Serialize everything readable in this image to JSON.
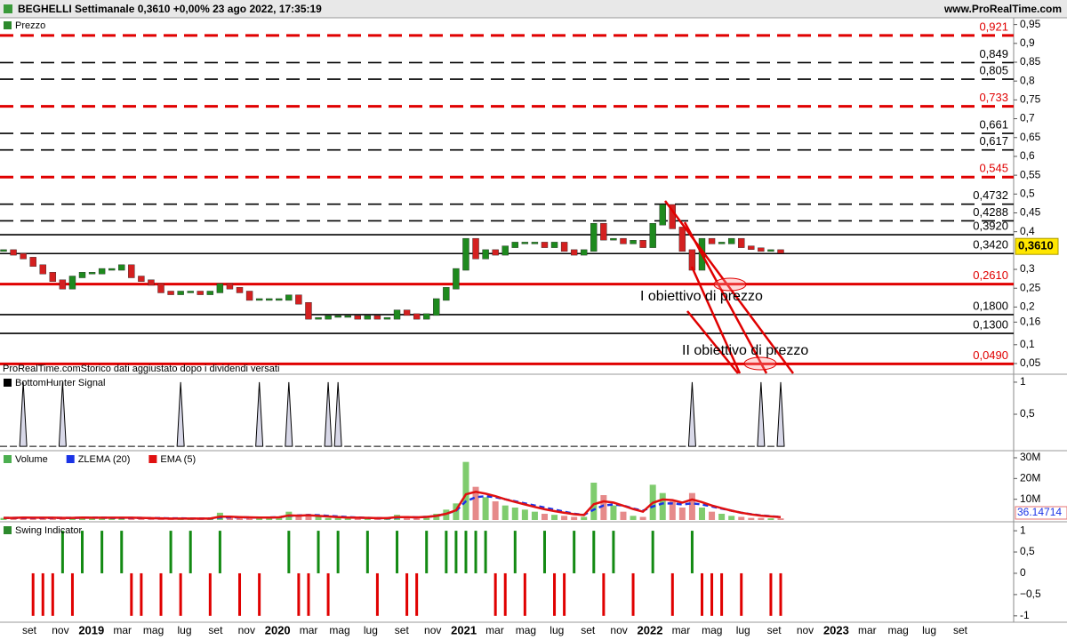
{
  "header": {
    "title": "BEGHELLI Settimanale 0,3610 +0,00% 23 ago 2022, 17:35:19",
    "site": "www.ProRealTime.com"
  },
  "time_axis": {
    "labels": [
      "set",
      "nov",
      "2019",
      "mar",
      "mag",
      "lug",
      "set",
      "nov",
      "2020",
      "mar",
      "mag",
      "lug",
      "set",
      "nov",
      "2021",
      "mar",
      "mag",
      "lug",
      "set",
      "nov",
      "2022",
      "mar",
      "mag",
      "lug",
      "set",
      "nov",
      "2023",
      "mar",
      "mag",
      "lug",
      "set"
    ]
  },
  "chart_data": [
    {
      "type": "candlestick",
      "title": "Prezzo",
      "up_color": "#1e8a1e",
      "down_color": "#d42020",
      "values": [
        0.35,
        0.34,
        0.33,
        0.31,
        0.29,
        0.27,
        0.25,
        0.28,
        0.29,
        0.29,
        0.3,
        0.3,
        0.31,
        0.28,
        0.27,
        0.26,
        0.24,
        0.235,
        0.24,
        0.24,
        0.235,
        0.24,
        0.26,
        0.25,
        0.24,
        0.22,
        0.22,
        0.22,
        0.22,
        0.23,
        0.21,
        0.17,
        0.17,
        0.175,
        0.175,
        0.175,
        0.17,
        0.175,
        0.17,
        0.17,
        0.19,
        0.18,
        0.17,
        0.18,
        0.22,
        0.25,
        0.3,
        0.38,
        0.33,
        0.35,
        0.34,
        0.36,
        0.37,
        0.37,
        0.37,
        0.36,
        0.37,
        0.35,
        0.34,
        0.35,
        0.42,
        0.38,
        0.38,
        0.37,
        0.375,
        0.36,
        0.42,
        0.47,
        0.41,
        0.35,
        0.3,
        0.38,
        0.37,
        0.37,
        0.38,
        0.36,
        0.355,
        0.35,
        0.35,
        0.345
      ],
      "ylim": [
        0.024,
        0.968
      ],
      "yticks": [
        {
          "value": 0.95,
          "label": "0,95"
        },
        {
          "value": 0.9,
          "label": "0,9"
        },
        {
          "value": 0.85,
          "label": "0,85"
        },
        {
          "value": 0.8,
          "label": "0,8"
        },
        {
          "value": 0.75,
          "label": "0,75"
        },
        {
          "value": 0.7,
          "label": "0,7"
        },
        {
          "value": 0.65,
          "label": "0,65"
        },
        {
          "value": 0.6,
          "label": "0,6"
        },
        {
          "value": 0.55,
          "label": "0,55"
        },
        {
          "value": 0.5,
          "label": "0,5"
        },
        {
          "value": 0.45,
          "label": "0,45"
        },
        {
          "value": 0.4,
          "label": "0,4"
        },
        {
          "value": 0.3,
          "label": "0,3"
        },
        {
          "value": 0.25,
          "label": "0,25"
        },
        {
          "value": 0.2,
          "label": "0,2"
        },
        {
          "value": 0.16,
          "label": "0,16"
        },
        {
          "value": 0.1,
          "label": "0,1"
        },
        {
          "value": 0.05,
          "label": "0,05"
        }
      ],
      "levels": [
        {
          "value": 0.921,
          "label": "0,921",
          "color": "#e00000",
          "style": "dashed"
        },
        {
          "value": 0.849,
          "label": "0,849",
          "color": "#000000",
          "style": "dashed"
        },
        {
          "value": 0.805,
          "label": "0,805",
          "color": "#000000",
          "style": "dashed"
        },
        {
          "value": 0.733,
          "label": "0,733",
          "color": "#e00000",
          "style": "dashed"
        },
        {
          "value": 0.661,
          "label": "0,661",
          "color": "#000000",
          "style": "dashed"
        },
        {
          "value": 0.617,
          "label": "0,617",
          "color": "#000000",
          "style": "dashed"
        },
        {
          "value": 0.545,
          "label": "0,545",
          "color": "#e00000",
          "style": "dashed"
        },
        {
          "value": 0.4732,
          "label": "0,4732",
          "color": "#000000",
          "style": "dashed"
        },
        {
          "value": 0.4288,
          "label": "0,4288",
          "color": "#000000",
          "style": "dashed"
        },
        {
          "value": 0.392,
          "label": "0,3920",
          "color": "#000000",
          "style": "solid"
        },
        {
          "value": 0.342,
          "label": "0,3420",
          "color": "#000000",
          "style": "solid"
        },
        {
          "value": 0.261,
          "label": "0,2610",
          "color": "#e00000",
          "style": "solid"
        },
        {
          "value": 0.18,
          "label": "0,1800",
          "color": "#000000",
          "style": "solid"
        },
        {
          "value": 0.13,
          "label": "0,1300",
          "color": "#000000",
          "style": "solid"
        },
        {
          "value": 0.049,
          "label": "0,0490",
          "color": "#e00000",
          "style": "solid"
        }
      ],
      "last": {
        "value": 0.361,
        "label": "0,3610"
      },
      "annotations": [
        "I obiettivo di prezzo",
        "II obiettivo di prezzo"
      ],
      "note": "ProRealTime.comStorico dati aggiustato dopo i dividendi versati"
    },
    {
      "type": "spike",
      "title": "BottomHunter Signal",
      "color": "#000000",
      "values": [
        0,
        0,
        1,
        0,
        0,
        0,
        1,
        0,
        0,
        0,
        0,
        0,
        0,
        0,
        0,
        0,
        0,
        0,
        1,
        0,
        0,
        0,
        0,
        0,
        0,
        0,
        1,
        0,
        0,
        1,
        0,
        0,
        0,
        1,
        1,
        0,
        0,
        0,
        0,
        0,
        0,
        0,
        0,
        0,
        0,
        0,
        0,
        0,
        0,
        0,
        0,
        0,
        0,
        0,
        0,
        0,
        0,
        0,
        0,
        0,
        0,
        0,
        0,
        0,
        0,
        0,
        0,
        0,
        0,
        0,
        1,
        0,
        0,
        0,
        0,
        0,
        0,
        1,
        0,
        1
      ],
      "ylim": [
        -0.04,
        1.11
      ],
      "yticks": [
        1,
        {
          "value": 0.5,
          "label": "0,5"
        }
      ]
    },
    {
      "type": "volume",
      "up_color": "#7fcc6e",
      "down_color": "#e68a8a",
      "series": [
        {
          "name": "Volume",
          "color": "#4caf50",
          "values": [
            1000000,
            1000000,
            1500000,
            1000000,
            1200000,
            1000000,
            800000,
            1000000,
            1500000,
            1000000,
            1000000,
            1000000,
            1200000,
            1000000,
            800000,
            800000,
            600000,
            600000,
            800000,
            600000,
            600000,
            800000,
            3500000,
            1500000,
            1000000,
            1000000,
            1200000,
            1000000,
            1500000,
            4000000,
            2000000,
            2500000,
            1500000,
            1000000,
            1000000,
            800000,
            800000,
            800000,
            800000,
            800000,
            2500000,
            1500000,
            1000000,
            2000000,
            3000000,
            5000000,
            8000000,
            28000000,
            16000000,
            11000000,
            9000000,
            7000000,
            6000000,
            5000000,
            4000000,
            3000000,
            2500000,
            2000000,
            1500000,
            1500000,
            18000000,
            12000000,
            7000000,
            4000000,
            2000000,
            1500000,
            17000000,
            13000000,
            9000000,
            6000000,
            13000000,
            6000000,
            4000000,
            3000000,
            2000000,
            1500000,
            1000000,
            1000000,
            800000,
            800000
          ]
        },
        {
          "name": "ZLEMA (20)",
          "color": "#1a33e6",
          "values": [
            1000000,
            1000000,
            1000000,
            1000000,
            1000000,
            1000000,
            1000000,
            1000000,
            1100000,
            1100000,
            1100000,
            1000000,
            1000000,
            1000000,
            1000000,
            900000,
            900000,
            800000,
            800000,
            700000,
            700000,
            700000,
            1200000,
            1300000,
            1300000,
            1200000,
            1200000,
            1200000,
            1300000,
            2000000,
            2200000,
            2400000,
            2300000,
            2000000,
            1700000,
            1400000,
            1200000,
            1000000,
            900000,
            800000,
            1200000,
            1400000,
            1300000,
            1500000,
            2000000,
            3000000,
            4500000,
            9000000,
            11000000,
            11500000,
            11000000,
            10000000,
            9000000,
            8000000,
            7000000,
            6000000,
            5000000,
            4000000,
            3000000,
            2500000,
            5000000,
            7000000,
            7500000,
            7000000,
            5500000,
            4500000,
            6500000,
            8000000,
            8000000,
            7500000,
            8000000,
            7500000,
            6500000,
            5500000,
            4500000,
            3500000,
            2800000,
            2200000,
            1800000,
            1500000
          ]
        },
        {
          "name": "EMA (5)",
          "color": "#e01010",
          "values": [
            1000000,
            1000000,
            1200000,
            1100000,
            1100000,
            1100000,
            1000000,
            1000000,
            1200000,
            1100000,
            1100000,
            1100000,
            1100000,
            1100000,
            1000000,
            900000,
            800000,
            700000,
            700000,
            700000,
            700000,
            700000,
            1600000,
            1600000,
            1400000,
            1300000,
            1200000,
            1200000,
            1300000,
            2200000,
            2100000,
            2300000,
            2000000,
            1700000,
            1400000,
            1200000,
            1100000,
            1000000,
            900000,
            900000,
            1400000,
            1400000,
            1300000,
            1500000,
            2000000,
            3000000,
            4700000,
            12400000,
            13600000,
            12700000,
            11500000,
            10000000,
            8700000,
            7500000,
            6300000,
            5200000,
            4300000,
            3500000,
            2800000,
            2400000,
            7600000,
            9000000,
            8400000,
            6900000,
            5300000,
            4000000,
            8300000,
            9900000,
            9600000,
            8400000,
            9900000,
            8600000,
            7000000,
            5700000,
            4500000,
            3500000,
            2700000,
            2100000,
            1700000,
            1400000
          ]
        }
      ],
      "ylim": [
        0,
        33000000
      ],
      "yticks": [
        {
          "value": 30000000,
          "label": "30M"
        },
        {
          "value": 20000000,
          "label": "20M"
        },
        {
          "value": 10000000,
          "label": "10M"
        }
      ],
      "value_label": "36.14714"
    },
    {
      "type": "bar",
      "title": "Swing Indicator",
      "up_color": "#138a13",
      "down_color": "#e00000",
      "values": [
        0,
        0,
        0,
        -1,
        -1,
        -1,
        1,
        -1,
        1,
        0,
        1,
        0,
        1,
        -1,
        -1,
        0,
        -1,
        1,
        -1,
        1,
        0,
        -1,
        1,
        0,
        -1,
        0,
        -1,
        0,
        0,
        1,
        -1,
        -1,
        1,
        -1,
        1,
        0,
        0,
        1,
        -1,
        0,
        1,
        -1,
        -1,
        1,
        0,
        1,
        1,
        1,
        1,
        1,
        -1,
        -1,
        1,
        -1,
        0,
        1,
        -1,
        -1,
        1,
        0,
        1,
        -1,
        1,
        0,
        -1,
        0,
        1,
        0,
        -1,
        0,
        1,
        -1,
        -1,
        -1,
        0,
        -1,
        0,
        0,
        -1,
        -1
      ],
      "ylim": [
        -1.15,
        1.19
      ],
      "yticks": [
        1,
        {
          "value": 0.5,
          "label": "0,5"
        },
        0,
        {
          "value": -0.5,
          "label": "−0,5"
        },
        -1
      ]
    }
  ]
}
